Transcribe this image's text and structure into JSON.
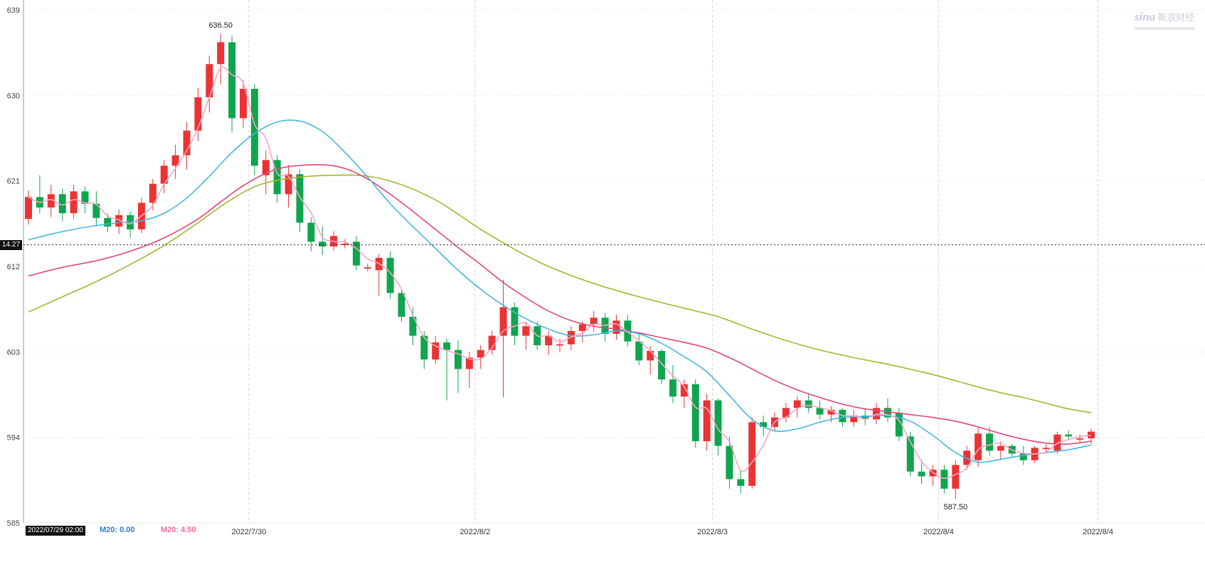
{
  "watermark": {
    "logo": "sina",
    "name": "新浪财经"
  },
  "footer": {
    "date_box": "2022/07/29 02:00",
    "legend": [
      {
        "text": "M20: 0.00",
        "color": "#2e7bdc"
      },
      {
        "text": "M20: 4.50",
        "color": "#f0699e"
      }
    ]
  },
  "chart_data": {
    "type": "candlestick",
    "title": "",
    "y_axis": {
      "min": 585,
      "max": 639,
      "ticks": [
        639,
        630,
        621,
        612,
        603,
        594,
        585
      ]
    },
    "x_axis": {
      "ticks": [
        {
          "index": 19.5,
          "label": "2022/7/30"
        },
        {
          "index": 39.5,
          "label": "2022/8/2"
        },
        {
          "index": 60.5,
          "label": "2022/8/3"
        },
        {
          "index": 80.5,
          "label": "2022/8/4"
        },
        {
          "index": 94.6,
          "label": "2022/8/4"
        }
      ]
    },
    "ref_line": {
      "price": 614.27,
      "label": "14.27"
    },
    "high_label": {
      "text": "636.50",
      "index": 17,
      "price": 636.5
    },
    "low_label": {
      "text": "587.50",
      "index": 82,
      "price": 587.5
    },
    "colors": {
      "up": "#eb3333",
      "down": "#0ea54e",
      "ma_fast": "#f7a6c1",
      "ma_mid": "#e0457a",
      "ma_slow_cyan": "#45b7e0",
      "ma_slowest": "#a6b52e",
      "grid": "#dcdcdc",
      "divider": "#d6d6d6",
      "axis": "#999999",
      "ref": "#222222"
    },
    "candles": [
      [
        617.0,
        620.0,
        616.4,
        619.3
      ],
      [
        619.3,
        621.6,
        617.6,
        618.2
      ],
      [
        618.2,
        620.6,
        617.2,
        619.6
      ],
      [
        619.6,
        620.2,
        616.8,
        617.6
      ],
      [
        617.6,
        620.6,
        617.0,
        619.9
      ],
      [
        619.9,
        620.4,
        617.6,
        618.6
      ],
      [
        618.6,
        619.9,
        616.2,
        617.1
      ],
      [
        617.1,
        617.6,
        615.6,
        616.2
      ],
      [
        616.2,
        618.0,
        615.4,
        617.4
      ],
      [
        617.4,
        617.8,
        615.0,
        615.9
      ],
      [
        615.9,
        619.2,
        615.5,
        618.7
      ],
      [
        618.7,
        621.2,
        617.9,
        620.7
      ],
      [
        620.7,
        623.2,
        619.7,
        622.6
      ],
      [
        622.6,
        624.8,
        621.2,
        623.7
      ],
      [
        623.7,
        627.2,
        622.2,
        626.3
      ],
      [
        626.3,
        630.8,
        625.2,
        629.8
      ],
      [
        629.8,
        634.2,
        628.2,
        633.3
      ],
      [
        633.3,
        636.5,
        631.2,
        635.6
      ],
      [
        635.6,
        636.3,
        626.2,
        627.6
      ],
      [
        627.6,
        631.6,
        626.6,
        630.7
      ],
      [
        630.7,
        631.2,
        621.6,
        622.6
      ],
      [
        621.6,
        624.2,
        619.6,
        623.2
      ],
      [
        623.2,
        623.7,
        618.7,
        619.6
      ],
      [
        619.6,
        622.7,
        618.2,
        621.7
      ],
      [
        621.7,
        622.2,
        615.6,
        616.6
      ],
      [
        616.6,
        617.2,
        613.6,
        614.6
      ],
      [
        614.6,
        616.2,
        613.2,
        614.1
      ],
      [
        614.1,
        615.7,
        613.7,
        615.2
      ],
      [
        614.4,
        614.9,
        613.9,
        614.4
      ],
      [
        614.6,
        615.2,
        611.6,
        612.1
      ],
      [
        611.9,
        612.3,
        611.5,
        611.9
      ],
      [
        611.6,
        613.3,
        608.9,
        612.9
      ],
      [
        612.9,
        613.6,
        608.6,
        609.2
      ],
      [
        609.2,
        609.7,
        606.2,
        606.7
      ],
      [
        606.7,
        607.7,
        603.7,
        604.7
      ],
      [
        604.7,
        605.2,
        601.2,
        602.2
      ],
      [
        602.2,
        604.7,
        601.7,
        604.0
      ],
      [
        604.0,
        604.4,
        597.9,
        603.2
      ],
      [
        603.2,
        604.2,
        598.7,
        601.2
      ],
      [
        601.2,
        603.0,
        599.2,
        602.4
      ],
      [
        602.4,
        603.7,
        601.2,
        603.2
      ],
      [
        603.2,
        605.2,
        602.7,
        604.7
      ],
      [
        604.7,
        610.6,
        598.2,
        607.7
      ],
      [
        607.7,
        608.2,
        603.7,
        604.7
      ],
      [
        604.7,
        606.2,
        603.2,
        605.7
      ],
      [
        605.7,
        606.2,
        603.2,
        603.7
      ],
      [
        603.7,
        605.2,
        602.7,
        604.7
      ],
      [
        603.7,
        604.4,
        603.0,
        603.8
      ],
      [
        603.8,
        605.7,
        603.2,
        605.2
      ],
      [
        605.2,
        606.2,
        604.0,
        605.9
      ],
      [
        605.9,
        607.3,
        605.1,
        606.6
      ],
      [
        606.6,
        607.1,
        604.1,
        604.9
      ],
      [
        604.9,
        606.9,
        604.3,
        606.3
      ],
      [
        606.3,
        606.9,
        603.6,
        604.1
      ],
      [
        604.1,
        604.9,
        601.6,
        602.1
      ],
      [
        602.1,
        603.6,
        600.6,
        603.1
      ],
      [
        603.1,
        603.3,
        599.6,
        600.1
      ],
      [
        600.1,
        601.6,
        597.6,
        598.3
      ],
      [
        598.3,
        600.1,
        597.1,
        599.6
      ],
      [
        599.6,
        600.1,
        592.9,
        593.6
      ],
      [
        593.6,
        598.6,
        592.6,
        597.9
      ],
      [
        597.9,
        598.1,
        592.1,
        593.1
      ],
      [
        593.1,
        594.1,
        588.6,
        589.6
      ],
      [
        589.6,
        590.6,
        588.1,
        588.9
      ],
      [
        588.9,
        596.1,
        588.6,
        595.6
      ],
      [
        595.6,
        596.3,
        594.1,
        595.1
      ],
      [
        595.1,
        596.6,
        594.6,
        596.1
      ],
      [
        596.1,
        597.6,
        595.6,
        597.1
      ],
      [
        597.1,
        598.3,
        596.1,
        597.9
      ],
      [
        597.9,
        598.6,
        596.6,
        597.1
      ],
      [
        597.1,
        597.9,
        595.9,
        596.4
      ],
      [
        596.4,
        597.3,
        595.6,
        596.9
      ],
      [
        596.9,
        597.1,
        595.1,
        595.6
      ],
      [
        595.6,
        596.9,
        595.1,
        596.3
      ],
      [
        596.3,
        597.1,
        595.3,
        595.9
      ],
      [
        595.9,
        597.6,
        595.4,
        597.1
      ],
      [
        597.1,
        598.1,
        595.6,
        596.1
      ],
      [
        596.6,
        597.1,
        593.6,
        594.1
      ],
      [
        594.1,
        594.6,
        589.9,
        590.4
      ],
      [
        590.4,
        591.6,
        589.1,
        589.9
      ],
      [
        589.9,
        591.1,
        588.9,
        590.6
      ],
      [
        590.6,
        591.1,
        588.1,
        588.6
      ],
      [
        588.6,
        591.6,
        587.5,
        591.1
      ],
      [
        591.1,
        593.1,
        590.6,
        592.6
      ],
      [
        591.6,
        595.1,
        590.9,
        594.4
      ],
      [
        594.4,
        595.1,
        592.1,
        592.6
      ],
      [
        592.6,
        593.6,
        591.6,
        593.1
      ],
      [
        593.1,
        593.3,
        591.9,
        592.3
      ],
      [
        592.3,
        593.1,
        591.1,
        591.6
      ],
      [
        591.6,
        593.1,
        591.3,
        592.9
      ],
      [
        592.9,
        593.3,
        592.4,
        592.9
      ],
      [
        592.6,
        594.6,
        592.3,
        594.3
      ],
      [
        594.3,
        594.7,
        593.7,
        594.1
      ],
      [
        593.9,
        594.3,
        593.5,
        593.9
      ],
      [
        593.9,
        594.9,
        593.3,
        594.6
      ]
    ],
    "ma_lines": [
      {
        "name": "ma-olive",
        "color_key": "ma_slowest",
        "points": [
          [
            0,
            607.2
          ],
          [
            3,
            608.8
          ],
          [
            6,
            610.4
          ],
          [
            9,
            612.2
          ],
          [
            12,
            614.2
          ],
          [
            15,
            616.6
          ],
          [
            17,
            618.3
          ],
          [
            19,
            619.8
          ],
          [
            21,
            620.8
          ],
          [
            24,
            621.4
          ],
          [
            27,
            621.6
          ],
          [
            30,
            621.5
          ],
          [
            33,
            620.6
          ],
          [
            36,
            619.0
          ],
          [
            38,
            617.5
          ],
          [
            40,
            615.9
          ],
          [
            43,
            613.8
          ],
          [
            46,
            612.0
          ],
          [
            50,
            610.2
          ],
          [
            54,
            608.8
          ],
          [
            58,
            607.6
          ],
          [
            61,
            606.7
          ],
          [
            64,
            605.4
          ],
          [
            67,
            604.2
          ],
          [
            70,
            603.2
          ],
          [
            73,
            602.4
          ],
          [
            76,
            601.7
          ],
          [
            79,
            600.9
          ],
          [
            81,
            600.3
          ],
          [
            84,
            599.3
          ],
          [
            86,
            598.7
          ],
          [
            88,
            598.2
          ],
          [
            90,
            597.6
          ],
          [
            92,
            597.0
          ],
          [
            94,
            596.6
          ]
        ]
      },
      {
        "name": "ma-rose",
        "color_key": "ma_mid",
        "points": [
          [
            0,
            611.0
          ],
          [
            3,
            611.9
          ],
          [
            6,
            612.6
          ],
          [
            9,
            613.6
          ],
          [
            12,
            615.0
          ],
          [
            15,
            617.0
          ],
          [
            17,
            618.8
          ],
          [
            19,
            620.5
          ],
          [
            21,
            621.8
          ],
          [
            23,
            622.5
          ],
          [
            26,
            622.7
          ],
          [
            28,
            622.3
          ],
          [
            30,
            621.2
          ],
          [
            32,
            619.6
          ],
          [
            34,
            617.8
          ],
          [
            36,
            615.9
          ],
          [
            38,
            614.0
          ],
          [
            40,
            612.2
          ],
          [
            42,
            610.3
          ],
          [
            44,
            608.7
          ],
          [
            46,
            607.3
          ],
          [
            48,
            606.3
          ],
          [
            50,
            605.7
          ],
          [
            52,
            605.4
          ],
          [
            54,
            605.0
          ],
          [
            56,
            604.5
          ],
          [
            58,
            604.0
          ],
          [
            60,
            603.4
          ],
          [
            62,
            602.4
          ],
          [
            64,
            601.2
          ],
          [
            66,
            600.0
          ],
          [
            68,
            599.0
          ],
          [
            70,
            598.2
          ],
          [
            72,
            597.5
          ],
          [
            74,
            597.0
          ],
          [
            76,
            596.7
          ],
          [
            78,
            596.4
          ],
          [
            80,
            596.1
          ],
          [
            82,
            595.7
          ],
          [
            84,
            595.1
          ],
          [
            86,
            594.4
          ],
          [
            88,
            593.8
          ],
          [
            90,
            593.4
          ],
          [
            92,
            593.3
          ],
          [
            94,
            593.6
          ]
        ]
      },
      {
        "name": "ma-cyan",
        "color_key": "ma_slow_cyan",
        "points": [
          [
            0,
            614.8
          ],
          [
            2,
            615.4
          ],
          [
            4,
            615.9
          ],
          [
            6,
            616.3
          ],
          [
            8,
            616.6
          ],
          [
            10,
            616.8
          ],
          [
            12,
            617.6
          ],
          [
            14,
            619.2
          ],
          [
            16,
            621.5
          ],
          [
            18,
            624.0
          ],
          [
            20,
            626.0
          ],
          [
            22,
            627.2
          ],
          [
            24,
            627.3
          ],
          [
            26,
            626.2
          ],
          [
            28,
            624.0
          ],
          [
            30,
            621.4
          ],
          [
            32,
            618.6
          ],
          [
            34,
            616.2
          ],
          [
            36,
            613.9
          ],
          [
            38,
            611.6
          ],
          [
            40,
            609.6
          ],
          [
            42,
            607.9
          ],
          [
            44,
            606.5
          ],
          [
            46,
            605.4
          ],
          [
            48,
            604.7
          ],
          [
            50,
            604.8
          ],
          [
            52,
            605.2
          ],
          [
            54,
            604.9
          ],
          [
            56,
            603.9
          ],
          [
            58,
            602.5
          ],
          [
            60,
            600.9
          ],
          [
            62,
            598.4
          ],
          [
            64,
            595.9
          ],
          [
            66,
            594.7
          ],
          [
            68,
            594.9
          ],
          [
            70,
            595.6
          ],
          [
            72,
            596.1
          ],
          [
            74,
            596.2
          ],
          [
            76,
            596.3
          ],
          [
            78,
            595.7
          ],
          [
            80,
            594.2
          ],
          [
            82,
            592.4
          ],
          [
            84,
            591.4
          ],
          [
            86,
            591.7
          ],
          [
            88,
            592.1
          ],
          [
            90,
            592.4
          ],
          [
            92,
            592.7
          ],
          [
            94,
            593.2
          ]
        ]
      }
    ],
    "ma_fast": {
      "name": "ma-pink",
      "window": 3,
      "color_key": "ma_fast"
    }
  }
}
